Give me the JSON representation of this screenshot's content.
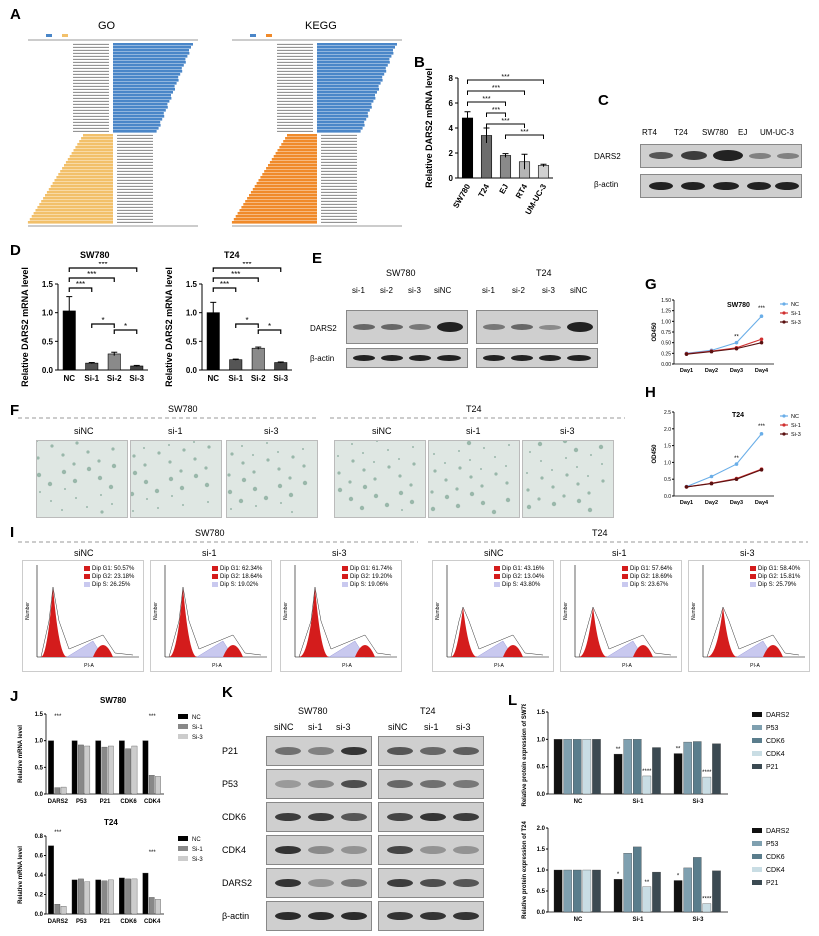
{
  "panel_letters": {
    "A": "A",
    "B": "B",
    "C": "C",
    "D": "D",
    "E": "E",
    "F": "F",
    "G": "G",
    "H": "H",
    "I": "I",
    "J": "J",
    "K": "K",
    "L": "L"
  },
  "panelA": {
    "go_title": "GO",
    "kegg_title": "KEGG"
  },
  "panelB": {
    "ylabel": "Relative DARS2 mRNA level",
    "sig": "***"
  },
  "panelC": {
    "cols": [
      "RT4",
      "T24",
      "SW780",
      "EJ",
      "UM-UC-3"
    ],
    "rows": [
      "DARS2",
      "β-actin"
    ]
  },
  "panelD": {
    "title1": "SW780",
    "title2": "T24",
    "ylabel": "Relative DARS2 mRNA level",
    "sig": "***",
    "sig_single": "*"
  },
  "panelE": {
    "group1": "SW780",
    "group2": "T24",
    "cols1": [
      "si-1",
      "si-2",
      "si-3",
      "siNC"
    ],
    "cols2": [
      "si-1",
      "si-2",
      "si-3",
      "siNC"
    ],
    "rows": [
      "DARS2",
      "β-actin"
    ]
  },
  "panelF": {
    "group1": "SW780",
    "group2": "T24",
    "cols": [
      "siNC",
      "si-1",
      "si-3",
      "siNC",
      "si-1",
      "si-3"
    ]
  },
  "panelI": {
    "group1": "SW780",
    "group2": "T24",
    "cols": [
      "siNC",
      "si-1",
      "si-3",
      "siNC",
      "si-1",
      "si-3"
    ],
    "legends": [
      [
        "Dip G1: 50.57%",
        "Dip G2: 23.18%",
        "Dip S: 26.25%"
      ],
      [
        "Dip G1: 62.34%",
        "Dip G2: 18.64%",
        "Dip S: 19.02%"
      ],
      [
        "Dip G1: 61.74%",
        "Dip G2: 19.20%",
        "Dip S: 19.06%"
      ],
      [
        "Dip G1: 43.16%",
        "Dip G2: 13.04%",
        "Dip S: 43.80%"
      ],
      [
        "Dip G1: 57.64%",
        "Dip G2: 18.69%",
        "Dip S: 23.67%"
      ],
      [
        "Dip G1: 58.40%",
        "Dip G2: 15.81%",
        "Dip S: 25.79%"
      ]
    ],
    "xlabel": "PI-A",
    "ylabel": "Number"
  },
  "panelK": {
    "group1": "SW780",
    "group2": "T24",
    "cols1": [
      "siNC",
      "si-1",
      "si-3"
    ],
    "cols2": [
      "siNC",
      "si-1",
      "si-3"
    ],
    "rows": [
      "P21",
      "P53",
      "CDK6",
      "CDK4",
      "DARS2",
      "β-actin"
    ]
  },
  "chart_data": [
    {
      "id": "B",
      "type": "bar",
      "categories": [
        "SW780",
        "T24",
        "EJ",
        "RT4",
        "UM-UC-3"
      ],
      "values": [
        4.8,
        3.4,
        1.8,
        1.3,
        1.0
      ],
      "errors": [
        0.5,
        0.6,
        0.15,
        0.6,
        0.1
      ],
      "ylim": [
        0,
        8
      ],
      "yticks": [
        "0",
        "2",
        "4",
        "6",
        "8"
      ],
      "ylabel": "Relative DARS2 mRNA level",
      "colors": [
        "#000000",
        "#6d6d6d",
        "#8a8a8a",
        "#b5b5b5",
        "#d0d0d0"
      ]
    },
    {
      "id": "D1",
      "type": "bar",
      "title": "SW780",
      "categories": [
        "NC",
        "Si-1",
        "Si-2",
        "Si-3"
      ],
      "values": [
        1.03,
        0.12,
        0.28,
        0.07
      ],
      "errors": [
        0.25,
        0.01,
        0.03,
        0.01
      ],
      "ylim": [
        0,
        1.5
      ],
      "yticks": [
        "0.0",
        "0.5",
        "1.0",
        "1.5"
      ],
      "ylabel": "Relative DARS2 mRNA level",
      "colors": [
        "#000000",
        "#555555",
        "#8a8a8a",
        "#444444"
      ]
    },
    {
      "id": "D2",
      "type": "bar",
      "title": "T24",
      "categories": [
        "NC",
        "Si-1",
        "Si-2",
        "Si-3"
      ],
      "values": [
        1.0,
        0.18,
        0.38,
        0.13
      ],
      "errors": [
        0.18,
        0.01,
        0.02,
        0.01
      ],
      "ylim": [
        0,
        1.5
      ],
      "yticks": [
        "0.0",
        "0.5",
        "1.0",
        "1.5"
      ],
      "ylabel": "Relative DARS2 mRNA level",
      "colors": [
        "#000000",
        "#555555",
        "#8a8a8a",
        "#444444"
      ]
    },
    {
      "id": "G",
      "type": "line",
      "title": "SW780",
      "x": [
        "Day1",
        "Day2",
        "Day3",
        "Day4"
      ],
      "ylabel": "OD450",
      "ylim": [
        0,
        1.5
      ],
      "yticks": [
        "0.00",
        "0.25",
        "0.50",
        "0.75",
        "1.00",
        "1.25",
        "1.50"
      ],
      "series": [
        {
          "name": "NC",
          "values": [
            0.25,
            0.32,
            0.5,
            1.12
          ],
          "color": "#6aaee8"
        },
        {
          "name": "Si-1",
          "values": [
            0.24,
            0.3,
            0.38,
            0.58
          ],
          "color": "#d03030"
        },
        {
          "name": "Si-3",
          "values": [
            0.23,
            0.29,
            0.36,
            0.5
          ],
          "color": "#5a1010"
        }
      ],
      "annotations": [
        "**",
        "***"
      ]
    },
    {
      "id": "H",
      "type": "line",
      "title": "T24",
      "x": [
        "Day1",
        "Day2",
        "Day3",
        "Day4"
      ],
      "ylabel": "OD450",
      "ylim": [
        0,
        2.5
      ],
      "yticks": [
        "0.0",
        "0.5",
        "1.0",
        "1.5",
        "2.0",
        "2.5"
      ],
      "series": [
        {
          "name": "NC",
          "values": [
            0.28,
            0.58,
            0.95,
            1.85
          ],
          "color": "#6aaee8"
        },
        {
          "name": "Si-1",
          "values": [
            0.27,
            0.38,
            0.52,
            0.8
          ],
          "color": "#d03030"
        },
        {
          "name": "Si-3",
          "values": [
            0.27,
            0.37,
            0.5,
            0.78
          ],
          "color": "#5a1010"
        }
      ],
      "annotations": [
        "**",
        "***"
      ]
    },
    {
      "id": "J1",
      "type": "bar",
      "title": "SW780",
      "categories": [
        "DARS2",
        "P53",
        "P21",
        "CDK6",
        "CDK4"
      ],
      "ylabel": "Relative mRNA level",
      "ylim": [
        0,
        1.5
      ],
      "yticks": [
        "0.0",
        "0.5",
        "1.0",
        "1.5"
      ],
      "series": [
        {
          "name": "NC",
          "values": [
            1.0,
            1.0,
            1.0,
            1.0,
            1.0
          ],
          "color": "#000000"
        },
        {
          "name": "Si-1",
          "values": [
            0.12,
            0.92,
            0.88,
            0.85,
            0.35
          ],
          "color": "#888888"
        },
        {
          "name": "Si-3",
          "values": [
            0.13,
            0.9,
            0.9,
            0.9,
            0.33
          ],
          "color": "#cccccc"
        }
      ],
      "sig": "***"
    },
    {
      "id": "J2",
      "type": "bar",
      "title": "T24",
      "categories": [
        "DARS2",
        "P53",
        "P21",
        "CDK6",
        "CDK4"
      ],
      "ylabel": "Relative mRNA level",
      "ylim": [
        0,
        0.8
      ],
      "yticks": [
        "0.0",
        "0.2",
        "0.4",
        "0.6",
        "0.8"
      ],
      "series": [
        {
          "name": "NC",
          "values": [
            0.7,
            0.35,
            0.35,
            0.37,
            0.42
          ],
          "color": "#000000"
        },
        {
          "name": "Si-1",
          "values": [
            0.1,
            0.36,
            0.34,
            0.36,
            0.17
          ],
          "color": "#888888"
        },
        {
          "name": "Si-3",
          "values": [
            0.08,
            0.33,
            0.35,
            0.36,
            0.15
          ],
          "color": "#cccccc"
        }
      ],
      "sig": "***"
    },
    {
      "id": "L1",
      "type": "bar",
      "categories": [
        "NC",
        "Si-1",
        "Si-3"
      ],
      "ylabel": "Relative protein expression of SW780",
      "ylim": [
        0,
        1.5
      ],
      "yticks": [
        "0.0",
        "0.5",
        "1.0",
        "1.5"
      ],
      "series": [
        {
          "name": "DARS2",
          "values": [
            1.0,
            0.73,
            0.74
          ],
          "color": "#111111"
        },
        {
          "name": "P53",
          "values": [
            1.0,
            1.0,
            0.95
          ],
          "color": "#7fa0b0"
        },
        {
          "name": "CDK6",
          "values": [
            1.0,
            1.0,
            0.96
          ],
          "color": "#5a7d8c"
        },
        {
          "name": "CDK4",
          "values": [
            1.0,
            0.33,
            0.31
          ],
          "color": "#c9dde4"
        },
        {
          "name": "P21",
          "values": [
            1.0,
            0.85,
            0.92
          ],
          "color": "#3b4a52"
        }
      ],
      "annotations": [
        "**",
        "****",
        "**",
        "****"
      ]
    },
    {
      "id": "L2",
      "type": "bar",
      "categories": [
        "NC",
        "Si-1",
        "Si-3"
      ],
      "ylabel": "Relative protein expression of T24",
      "ylim": [
        0,
        2.0
      ],
      "yticks": [
        "0.0",
        "0.5",
        "1.0",
        "1.5",
        "2.0"
      ],
      "series": [
        {
          "name": "DARS2",
          "values": [
            1.0,
            0.78,
            0.75
          ],
          "color": "#111111"
        },
        {
          "name": "P53",
          "values": [
            1.0,
            1.4,
            1.05
          ],
          "color": "#7fa0b0"
        },
        {
          "name": "CDK6",
          "values": [
            1.0,
            1.55,
            1.3
          ],
          "color": "#5a7d8c"
        },
        {
          "name": "CDK4",
          "values": [
            1.0,
            0.6,
            0.2
          ],
          "color": "#c9dde4"
        },
        {
          "name": "P21",
          "values": [
            1.0,
            0.95,
            0.98
          ],
          "color": "#3b4a52"
        }
      ],
      "annotations": [
        "*",
        "**",
        "*",
        "****"
      ]
    }
  ]
}
